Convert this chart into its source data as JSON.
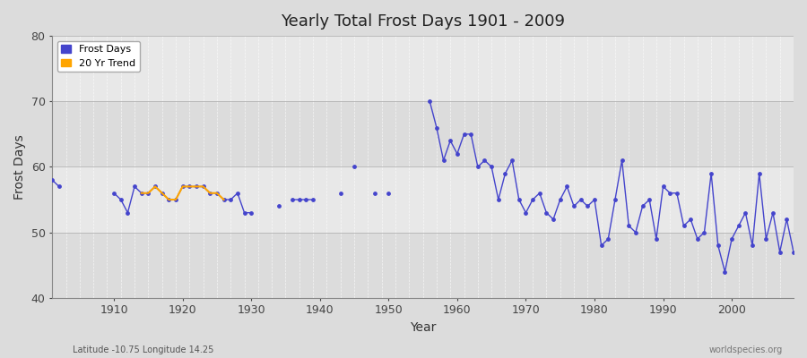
{
  "title": "Yearly Total Frost Days 1901 - 2009",
  "xlabel": "Year",
  "ylabel": "Frost Days",
  "xlim": [
    1901,
    2009
  ],
  "ylim": [
    40,
    80
  ],
  "yticks": [
    40,
    50,
    60,
    70,
    80
  ],
  "xticks": [
    1910,
    1920,
    1930,
    1940,
    1950,
    1960,
    1970,
    1980,
    1990,
    2000
  ],
  "background_color": "#dcdcdc",
  "plot_bg_color_light": "#e8e8e8",
  "plot_bg_color_dark": "#d8d8d8",
  "line_color": "#4444cc",
  "trend_color": "#ffa500",
  "subtitle_left": "Latitude -10.75 Longitude 14.25",
  "subtitle_right": "worldspecies.org",
  "years": [
    1901,
    1902,
    1903,
    1904,
    1905,
    1906,
    1907,
    1908,
    1909,
    1910,
    1911,
    1912,
    1913,
    1914,
    1915,
    1916,
    1917,
    1918,
    1919,
    1920,
    1921,
    1922,
    1923,
    1924,
    1925,
    1926,
    1927,
    1928,
    1929,
    1930,
    1931,
    1932,
    1933,
    1934,
    1935,
    1936,
    1937,
    1938,
    1939,
    1940,
    1941,
    1942,
    1943,
    1944,
    1945,
    1946,
    1947,
    1948,
    1949,
    1950,
    1951,
    1952,
    1953,
    1954,
    1955,
    1956,
    1957,
    1958,
    1959,
    1960,
    1961,
    1962,
    1963,
    1964,
    1965,
    1966,
    1967,
    1968,
    1969,
    1970,
    1971,
    1972,
    1973,
    1974,
    1975,
    1976,
    1977,
    1978,
    1979,
    1980,
    1981,
    1982,
    1983,
    1984,
    1985,
    1986,
    1987,
    1988,
    1989,
    1990,
    1991,
    1992,
    1993,
    1994,
    1995,
    1996,
    1997,
    1998,
    1999,
    2000,
    2001,
    2002,
    2003,
    2004,
    2005,
    2006,
    2007,
    2008,
    2009
  ],
  "frost_days": [
    58,
    57,
    null,
    null,
    null,
    null,
    null,
    null,
    null,
    56,
    55,
    53,
    57,
    56,
    56,
    57,
    56,
    55,
    55,
    57,
    57,
    57,
    57,
    56,
    56,
    55,
    55,
    56,
    53,
    53,
    null,
    null,
    null,
    54,
    null,
    55,
    55,
    55,
    55,
    null,
    null,
    null,
    56,
    null,
    60,
    null,
    null,
    56,
    null,
    56,
    null,
    null,
    null,
    null,
    null,
    70,
    66,
    61,
    64,
    62,
    65,
    65,
    60,
    61,
    60,
    55,
    59,
    61,
    55,
    53,
    55,
    56,
    53,
    52,
    55,
    57,
    54,
    55,
    54,
    55,
    48,
    49,
    55,
    61,
    51,
    50,
    54,
    55,
    49,
    57,
    56,
    56,
    51,
    52,
    49,
    50,
    59,
    48,
    44,
    49,
    51,
    53,
    48,
    59,
    49,
    53,
    47,
    52,
    47
  ],
  "trend_x": [
    1914,
    1915,
    1916,
    1917,
    1918,
    1919,
    1920,
    1921,
    1922,
    1923,
    1924,
    1925,
    1926
  ],
  "trend_y": [
    56,
    56,
    57,
    56,
    55,
    55,
    57,
    57,
    57,
    57,
    56,
    56,
    55
  ]
}
